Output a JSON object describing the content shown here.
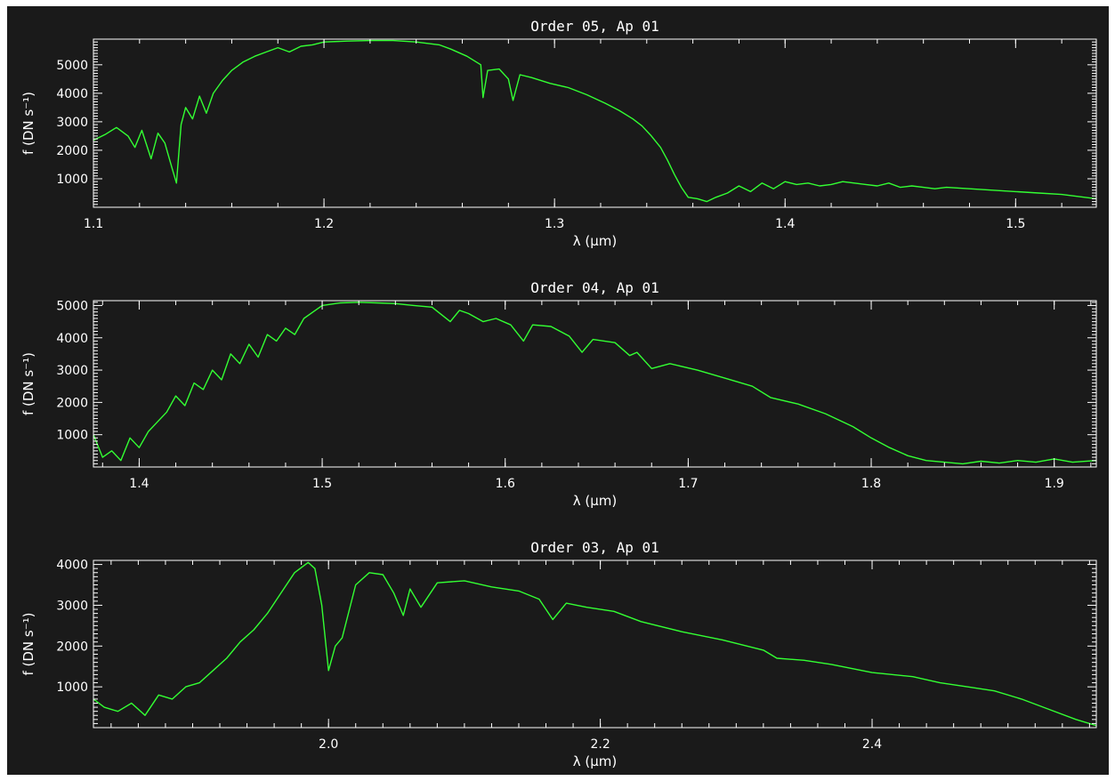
{
  "chart_data": [
    {
      "type": "line",
      "title": "Order 05, Ap 01",
      "xlabel": "λ (μm)",
      "ylabel": "f (DN s⁻¹)",
      "xlim": [
        1.1,
        1.535
      ],
      "ylim": [
        0,
        5900
      ],
      "xticks": [
        "1.1",
        "1.2",
        "1.3",
        "1.4",
        "1.5"
      ],
      "yticks": [
        "1000",
        "2000",
        "3000",
        "4000",
        "5000"
      ],
      "grid": false,
      "series": [
        {
          "color": "#33ff33",
          "x": [
            1.1,
            1.105,
            1.11,
            1.115,
            1.118,
            1.121,
            1.125,
            1.128,
            1.131,
            1.134,
            1.136,
            1.138,
            1.14,
            1.143,
            1.146,
            1.149,
            1.152,
            1.156,
            1.16,
            1.165,
            1.17,
            1.175,
            1.18,
            1.185,
            1.19,
            1.195,
            1.2,
            1.21,
            1.22,
            1.23,
            1.24,
            1.25,
            1.255,
            1.262,
            1.268,
            1.269,
            1.271,
            1.276,
            1.28,
            1.282,
            1.285,
            1.29,
            1.298,
            1.306,
            1.314,
            1.322,
            1.328,
            1.334,
            1.338,
            1.342,
            1.346,
            1.349,
            1.352,
            1.355,
            1.358,
            1.362,
            1.366,
            1.37,
            1.375,
            1.38,
            1.385,
            1.39,
            1.395,
            1.4,
            1.405,
            1.41,
            1.415,
            1.42,
            1.425,
            1.43,
            1.435,
            1.44,
            1.445,
            1.45,
            1.455,
            1.46,
            1.465,
            1.47,
            1.48,
            1.49,
            1.5,
            1.51,
            1.52,
            1.535
          ],
          "y": [
            2350,
            2550,
            2800,
            2500,
            2100,
            2700,
            1700,
            2600,
            2250,
            1400,
            850,
            2900,
            3500,
            3100,
            3900,
            3300,
            4000,
            4450,
            4800,
            5100,
            5300,
            5450,
            5600,
            5450,
            5650,
            5700,
            5800,
            5830,
            5850,
            5850,
            5800,
            5700,
            5550,
            5300,
            5000,
            3850,
            4800,
            4850,
            4500,
            3750,
            4650,
            4550,
            4350,
            4200,
            3950,
            3650,
            3400,
            3100,
            2850,
            2500,
            2100,
            1650,
            1150,
            700,
            350,
            300,
            200,
            350,
            500,
            750,
            550,
            850,
            650,
            900,
            800,
            850,
            750,
            800,
            900,
            850,
            800,
            750,
            850,
            700,
            750,
            700,
            650,
            700,
            650,
            600,
            550,
            500,
            450,
            300
          ]
        }
      ]
    },
    {
      "type": "line",
      "title": "Order 04, Ap 01",
      "xlabel": "λ (μm)",
      "ylabel": "f (DN s⁻¹)",
      "xlim": [
        1.375,
        1.923
      ],
      "ylim": [
        0,
        5150
      ],
      "xticks": [
        "1.4",
        "1.5",
        "1.6",
        "1.7",
        "1.8",
        "1.9"
      ],
      "yticks": [
        "1000",
        "2000",
        "3000",
        "4000",
        "5000"
      ],
      "grid": false,
      "series": [
        {
          "color": "#33ff33",
          "x": [
            1.375,
            1.38,
            1.385,
            1.39,
            1.395,
            1.4,
            1.405,
            1.41,
            1.415,
            1.42,
            1.425,
            1.43,
            1.435,
            1.44,
            1.445,
            1.45,
            1.455,
            1.46,
            1.465,
            1.47,
            1.475,
            1.48,
            1.485,
            1.49,
            1.495,
            1.5,
            1.51,
            1.52,
            1.53,
            1.54,
            1.55,
            1.56,
            1.57,
            1.575,
            1.58,
            1.588,
            1.595,
            1.603,
            1.61,
            1.615,
            1.625,
            1.635,
            1.642,
            1.648,
            1.66,
            1.668,
            1.672,
            1.68,
            1.69,
            1.705,
            1.72,
            1.735,
            1.745,
            1.76,
            1.775,
            1.79,
            1.8,
            1.81,
            1.82,
            1.83,
            1.84,
            1.85,
            1.86,
            1.87,
            1.88,
            1.89,
            1.9,
            1.91,
            1.923
          ],
          "y": [
            1000,
            300,
            500,
            200,
            900,
            600,
            1100,
            1400,
            1700,
            2200,
            1900,
            2600,
            2400,
            3000,
            2700,
            3500,
            3200,
            3800,
            3400,
            4100,
            3900,
            4300,
            4100,
            4600,
            4800,
            5000,
            5080,
            5100,
            5080,
            5060,
            5000,
            4950,
            4500,
            4850,
            4750,
            4500,
            4600,
            4400,
            3900,
            4400,
            4350,
            4050,
            3550,
            3950,
            3850,
            3450,
            3550,
            3050,
            3200,
            3000,
            2750,
            2500,
            2150,
            1950,
            1650,
            1250,
            900,
            600,
            350,
            200,
            150,
            100,
            180,
            120,
            200,
            150,
            250,
            150,
            200
          ]
        }
      ]
    },
    {
      "type": "line",
      "title": "Order 03, Ap 01",
      "xlabel": "λ (μm)",
      "ylabel": "f (DN s⁻¹)",
      "xlim": [
        1.827,
        2.565
      ],
      "ylim": [
        0,
        4100
      ],
      "xticks": [
        "2.0",
        "2.2",
        "2.4"
      ],
      "yticks": [
        "1000",
        "2000",
        "3000",
        "4000"
      ],
      "grid": false,
      "series": [
        {
          "color": "#33ff33",
          "x": [
            1.827,
            1.835,
            1.845,
            1.855,
            1.865,
            1.875,
            1.885,
            1.895,
            1.905,
            1.915,
            1.925,
            1.935,
            1.945,
            1.955,
            1.965,
            1.975,
            1.985,
            1.99,
            1.995,
            2.0,
            2.005,
            2.01,
            2.02,
            2.03,
            2.04,
            2.048,
            2.055,
            2.06,
            2.068,
            2.08,
            2.1,
            2.12,
            2.14,
            2.155,
            2.165,
            2.175,
            2.19,
            2.21,
            2.23,
            2.26,
            2.29,
            2.32,
            2.33,
            2.35,
            2.37,
            2.4,
            2.43,
            2.45,
            2.47,
            2.49,
            2.51,
            2.53,
            2.55,
            2.565
          ],
          "y": [
            700,
            500,
            400,
            600,
            300,
            800,
            700,
            1000,
            1100,
            1400,
            1700,
            2100,
            2400,
            2800,
            3300,
            3800,
            4050,
            3900,
            3000,
            1400,
            2000,
            2200,
            3500,
            3800,
            3750,
            3300,
            2750,
            3400,
            2950,
            3550,
            3600,
            3450,
            3350,
            3150,
            2650,
            3050,
            2950,
            2850,
            2600,
            2350,
            2150,
            1900,
            1700,
            1650,
            1550,
            1350,
            1250,
            1100,
            1000,
            900,
            700,
            450,
            200,
            50
          ]
        }
      ]
    }
  ]
}
